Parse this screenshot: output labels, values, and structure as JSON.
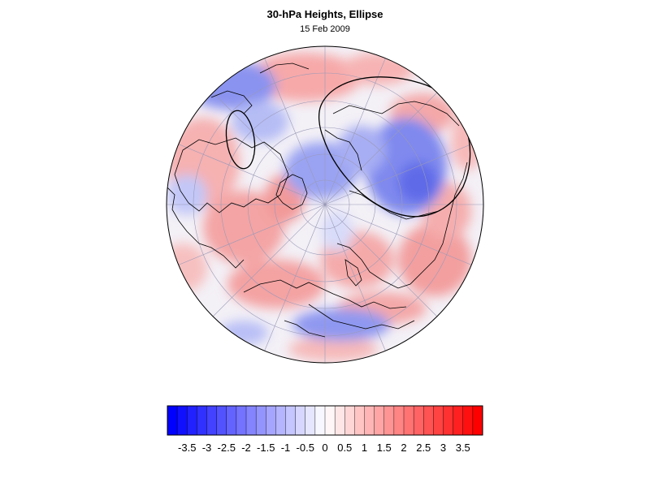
{
  "figure": {
    "title": "30-hPa Heights, Ellipse",
    "subtitle": "15 Feb 2009"
  },
  "colorbar": {
    "labels": [
      "-3.5",
      "-3",
      "-2.5",
      "-2",
      "-1.5",
      "-1",
      "-0.5",
      "0",
      "0.5",
      "1",
      "1.5",
      "2",
      "2.5",
      "3",
      "3.5"
    ],
    "min": -4.0,
    "max": 4.0,
    "step": 0.25,
    "negative_color": "#0000ff",
    "positive_color": "#ff0000",
    "neutral_color": "#ffffff"
  },
  "map": {
    "projection": "polar orthographic, north pole centered",
    "anomaly_field": "30-hPa height anomaly",
    "ellipse_color": "#000000",
    "coastline_color": "#000000",
    "gridline_color": "#9a9ab8"
  }
}
